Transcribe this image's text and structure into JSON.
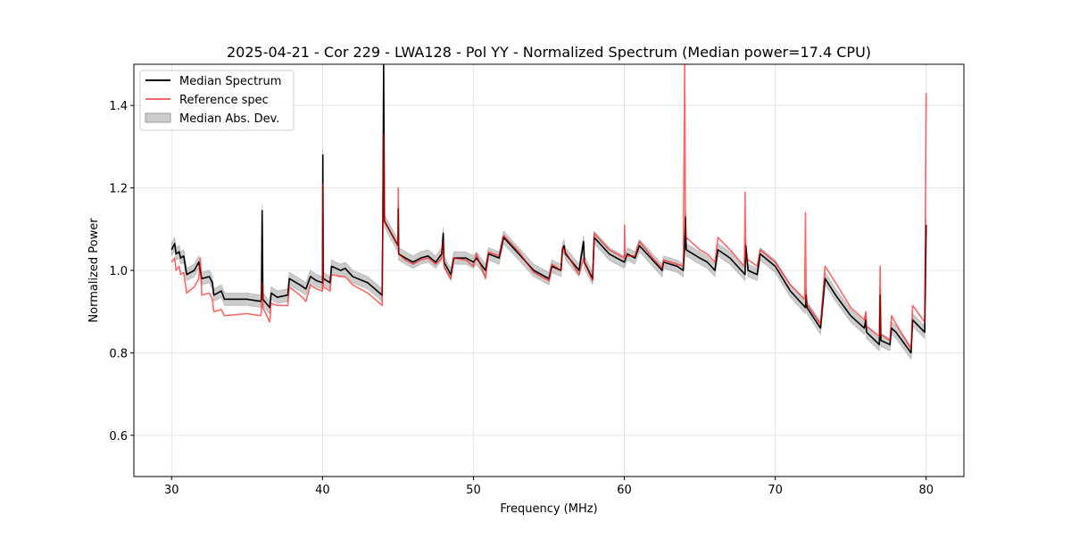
{
  "chart_data": {
    "type": "line",
    "title": "2025-04-21 - Cor 229 - LWA128 - Pol YY - Normalized Spectrum (Median power=17.4 CPU)",
    "xlabel": "Frequency (MHz)",
    "ylabel": "Normalized Power",
    "xlim": [
      27.5,
      82.5
    ],
    "ylim": [
      0.5,
      1.5
    ],
    "xticks": [
      30,
      40,
      50,
      60,
      70,
      80
    ],
    "yticks": [
      0.6,
      0.8,
      1.0,
      1.2,
      1.4
    ],
    "xtick_labels": [
      "30",
      "40",
      "50",
      "60",
      "70",
      "80"
    ],
    "ytick_labels": [
      "0.6",
      "0.8",
      "1.0",
      "1.2",
      "1.4"
    ],
    "grid": true,
    "legend_position": "top-left",
    "legend": [
      "Median Spectrum",
      "Reference spec",
      "Median Abs. Dev."
    ],
    "colors": {
      "median": "#000000",
      "reference": "#ff0000",
      "mad": "#999999"
    },
    "mad_halfwidth": 0.015,
    "series": [
      {
        "name": "Median Spectrum",
        "points": [
          [
            30,
            1.05
          ],
          [
            30.2,
            1.065
          ],
          [
            30.3,
            1.04
          ],
          [
            30.5,
            1.045
          ],
          [
            30.6,
            1.03
          ],
          [
            30.8,
            1.035
          ],
          [
            31,
            0.99
          ],
          [
            31.5,
            1.0
          ],
          [
            31.8,
            1.02
          ],
          [
            32,
            0.98
          ],
          [
            32.5,
            0.985
          ],
          [
            32.7,
            0.97
          ],
          [
            32.8,
            0.94
          ],
          [
            33.3,
            0.95
          ],
          [
            33.5,
            0.93
          ],
          [
            35,
            0.93
          ],
          [
            35.9,
            0.925
          ],
          [
            35.95,
            0.93
          ],
          [
            36,
            1.145
          ],
          [
            36.05,
            0.93
          ],
          [
            36.5,
            0.91
          ],
          [
            36.6,
            0.945
          ],
          [
            37,
            0.935
          ],
          [
            37.7,
            0.94
          ],
          [
            37.8,
            0.98
          ],
          [
            38.5,
            0.965
          ],
          [
            38.9,
            0.955
          ],
          [
            39.2,
            0.985
          ],
          [
            39.6,
            0.975
          ],
          [
            40,
            0.97
          ],
          [
            40.02,
            1.28
          ],
          [
            40.05,
            0.98
          ],
          [
            40.5,
            0.97
          ],
          [
            40.6,
            1.01
          ],
          [
            41.2,
            1.0
          ],
          [
            41.5,
            1.005
          ],
          [
            42,
            0.985
          ],
          [
            43,
            0.97
          ],
          [
            43.95,
            0.94
          ],
          [
            44,
            1.13
          ],
          [
            44.05,
            1.5
          ],
          [
            44.1,
            1.12
          ],
          [
            45,
            1.06
          ],
          [
            45.02,
            1.15
          ],
          [
            45.05,
            1.04
          ],
          [
            45.5,
            1.03
          ],
          [
            46,
            1.02
          ],
          [
            46.5,
            1.03
          ],
          [
            47,
            1.035
          ],
          [
            47.5,
            1.02
          ],
          [
            47.9,
            1.04
          ],
          [
            48,
            1.09
          ],
          [
            48.05,
            1.02
          ],
          [
            48.5,
            0.99
          ],
          [
            48.7,
            1.03
          ],
          [
            49.5,
            1.03
          ],
          [
            50,
            1.02
          ],
          [
            50.2,
            1.03
          ],
          [
            50.8,
            1.0
          ],
          [
            51,
            1.04
          ],
          [
            51.7,
            1.03
          ],
          [
            52,
            1.08
          ],
          [
            53,
            1.04
          ],
          [
            54,
            1.0
          ],
          [
            55,
            0.98
          ],
          [
            55.2,
            1.01
          ],
          [
            55.8,
            1.0
          ],
          [
            55.9,
            1.05
          ],
          [
            56,
            1.06
          ],
          [
            56.1,
            1.04
          ],
          [
            57,
            1.0
          ],
          [
            57.3,
            1.07
          ],
          [
            57.35,
            1.02
          ],
          [
            57.9,
            0.98
          ],
          [
            58,
            1.08
          ],
          [
            59,
            1.04
          ],
          [
            60,
            1.02
          ],
          [
            60.2,
            1.04
          ],
          [
            60.7,
            1.03
          ],
          [
            61,
            1.06
          ],
          [
            62,
            1.02
          ],
          [
            62.5,
            1.0
          ],
          [
            62.6,
            1.02
          ],
          [
            63.5,
            1.01
          ],
          [
            63.9,
            1.0
          ],
          [
            64,
            1.06
          ],
          [
            64.05,
            1.13
          ],
          [
            64.1,
            1.05
          ],
          [
            65,
            1.03
          ],
          [
            65.5,
            1.02
          ],
          [
            66,
            1.0
          ],
          [
            66.2,
            1.05
          ],
          [
            67,
            1.03
          ],
          [
            68,
            0.99
          ],
          [
            68.05,
            1.06
          ],
          [
            68.2,
            1.0
          ],
          [
            68.8,
            0.99
          ],
          [
            69,
            1.04
          ],
          [
            70,
            1.01
          ],
          [
            71,
            0.95
          ],
          [
            72,
            0.91
          ],
          [
            72.05,
            0.94
          ],
          [
            72.1,
            0.91
          ],
          [
            73,
            0.86
          ],
          [
            73.3,
            0.98
          ],
          [
            74,
            0.94
          ],
          [
            75,
            0.89
          ],
          [
            75.9,
            0.86
          ],
          [
            76,
            0.88
          ],
          [
            76.05,
            0.85
          ],
          [
            76.9,
            0.82
          ],
          [
            76.95,
            0.94
          ],
          [
            77,
            0.83
          ],
          [
            77.6,
            0.82
          ],
          [
            77.7,
            0.86
          ],
          [
            78,
            0.85
          ],
          [
            79,
            0.8
          ],
          [
            79.1,
            0.88
          ],
          [
            79.9,
            0.85
          ],
          [
            80,
            1.11
          ]
        ]
      },
      {
        "name": "Reference spec",
        "points": [
          [
            30,
            1.02
          ],
          [
            30.2,
            1.03
          ],
          [
            30.3,
            1.0
          ],
          [
            30.5,
            1.01
          ],
          [
            30.6,
            0.99
          ],
          [
            30.8,
            0.995
          ],
          [
            31,
            0.945
          ],
          [
            31.5,
            0.96
          ],
          [
            31.8,
            0.98
          ],
          [
            31.9,
            1.03
          ],
          [
            32,
            0.94
          ],
          [
            32.5,
            0.945
          ],
          [
            32.7,
            0.93
          ],
          [
            32.8,
            0.9
          ],
          [
            33.3,
            0.905
          ],
          [
            33.5,
            0.89
          ],
          [
            35,
            0.895
          ],
          [
            35.9,
            0.89
          ],
          [
            35.95,
            0.9
          ],
          [
            36,
            0.97
          ],
          [
            36.05,
            0.91
          ],
          [
            36.5,
            0.875
          ],
          [
            36.6,
            0.92
          ],
          [
            37,
            0.915
          ],
          [
            37.7,
            0.915
          ],
          [
            37.8,
            0.96
          ],
          [
            38.5,
            0.94
          ],
          [
            38.9,
            0.925
          ],
          [
            39.2,
            0.965
          ],
          [
            39.6,
            0.955
          ],
          [
            40,
            0.95
          ],
          [
            40.02,
            1.21
          ],
          [
            40.05,
            0.96
          ],
          [
            40.5,
            0.95
          ],
          [
            40.6,
            0.99
          ],
          [
            41.2,
            0.985
          ],
          [
            41.5,
            0.985
          ],
          [
            42,
            0.965
          ],
          [
            43,
            0.945
          ],
          [
            43.95,
            0.915
          ],
          [
            44,
            1.14
          ],
          [
            44.05,
            1.33
          ],
          [
            44.1,
            1.12
          ],
          [
            45,
            1.06
          ],
          [
            45.02,
            1.2
          ],
          [
            45.05,
            1.04
          ],
          [
            45.5,
            1.025
          ],
          [
            46,
            1.015
          ],
          [
            46.5,
            1.025
          ],
          [
            47,
            1.03
          ],
          [
            47.5,
            1.015
          ],
          [
            47.9,
            1.03
          ],
          [
            48,
            1.07
          ],
          [
            48.05,
            1.01
          ],
          [
            48.5,
            0.98
          ],
          [
            48.7,
            1.03
          ],
          [
            49.5,
            1.025
          ],
          [
            50,
            1.01
          ],
          [
            50.2,
            1.04
          ],
          [
            50.8,
            0.98
          ],
          [
            51,
            1.045
          ],
          [
            51.7,
            1.035
          ],
          [
            52,
            1.085
          ],
          [
            53,
            1.045
          ],
          [
            54,
            0.995
          ],
          [
            55,
            0.975
          ],
          [
            55.2,
            1.015
          ],
          [
            55.8,
            1.0
          ],
          [
            55.9,
            1.055
          ],
          [
            56,
            1.05
          ],
          [
            56.1,
            1.045
          ],
          [
            57,
            0.99
          ],
          [
            57.3,
            1.03
          ],
          [
            57.35,
            1.02
          ],
          [
            57.9,
            0.975
          ],
          [
            58,
            1.09
          ],
          [
            59,
            1.05
          ],
          [
            60,
            1.03
          ],
          [
            60.02,
            1.11
          ],
          [
            60.05,
            1.035
          ],
          [
            60.7,
            1.035
          ],
          [
            61,
            1.07
          ],
          [
            62,
            1.025
          ],
          [
            62.5,
            1.005
          ],
          [
            62.6,
            1.025
          ],
          [
            63.5,
            1.015
          ],
          [
            63.9,
            1.01
          ],
          [
            64,
            1.5
          ],
          [
            64.05,
            1.09
          ],
          [
            64.1,
            1.08
          ],
          [
            65,
            1.05
          ],
          [
            65.5,
            1.04
          ],
          [
            66,
            1.02
          ],
          [
            66.2,
            1.08
          ],
          [
            67,
            1.05
          ],
          [
            67.95,
            1.01
          ],
          [
            68,
            1.19
          ],
          [
            68.05,
            1.03
          ],
          [
            68.8,
            1.01
          ],
          [
            69,
            1.05
          ],
          [
            70,
            1.02
          ],
          [
            71,
            0.965
          ],
          [
            71.95,
            0.93
          ],
          [
            72,
            1.14
          ],
          [
            72.05,
            0.92
          ],
          [
            73,
            0.87
          ],
          [
            73.3,
            1.01
          ],
          [
            74,
            0.97
          ],
          [
            75,
            0.91
          ],
          [
            75.9,
            0.88
          ],
          [
            76,
            0.9
          ],
          [
            76.05,
            0.865
          ],
          [
            76.9,
            0.84
          ],
          [
            76.95,
            1.01
          ],
          [
            77,
            0.845
          ],
          [
            77.6,
            0.83
          ],
          [
            77.7,
            0.89
          ],
          [
            78,
            0.87
          ],
          [
            79,
            0.81
          ],
          [
            79.1,
            0.915
          ],
          [
            79.9,
            0.875
          ],
          [
            80,
            1.43
          ]
        ]
      }
    ]
  }
}
